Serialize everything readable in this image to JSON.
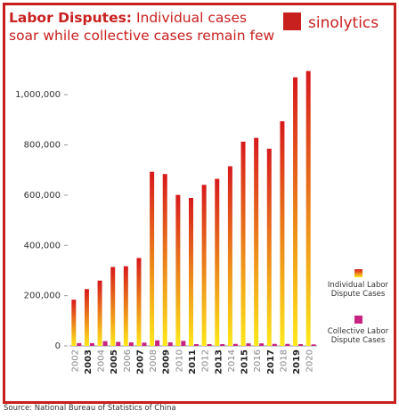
{
  "brand": "sinolytics",
  "source": "Source: National Bureau of Statistics of China",
  "chart_data": {
    "type": "bar",
    "title": "Labor Disputes:",
    "subtitle": "Individual cases soar while collective cases remain few",
    "categories": [
      "2002",
      "2003",
      "2004",
      "2005",
      "2006",
      "2007",
      "2008",
      "2009",
      "2010",
      "2011",
      "2012",
      "2013",
      "2014",
      "2015",
      "2016",
      "2017",
      "2018",
      "2019",
      "2020"
    ],
    "series": [
      {
        "name": "Individual Labor Dispute Cases",
        "color": "#d7191c",
        "values": [
          184000,
          226000,
          260000,
          314000,
          317000,
          350000,
          693000,
          684000,
          601000,
          589000,
          641000,
          665000,
          715000,
          813000,
          828000,
          785000,
          894000,
          1069000,
          1094000
        ]
      },
      {
        "name": "Collective Labor Dispute Cases",
        "color": "#c8237f",
        "values": [
          11000,
          11000,
          19000,
          16000,
          14000,
          13000,
          22000,
          14000,
          20000,
          7000,
          7000,
          7000,
          8000,
          10000,
          10000,
          8000,
          8000,
          7000,
          6000
        ]
      }
    ],
    "ylim": [
      0,
      1100000
    ],
    "yticks": [
      0,
      {
        "value": 200000,
        "label": "200,000"
      },
      {
        "value": 400000,
        "label": "400,000"
      },
      {
        "value": 600000,
        "label": "600,000"
      },
      {
        "value": 800000,
        "label": "800,000"
      },
      {
        "value": 1000000,
        "label": "1,000,000"
      }
    ],
    "legend": "right"
  }
}
